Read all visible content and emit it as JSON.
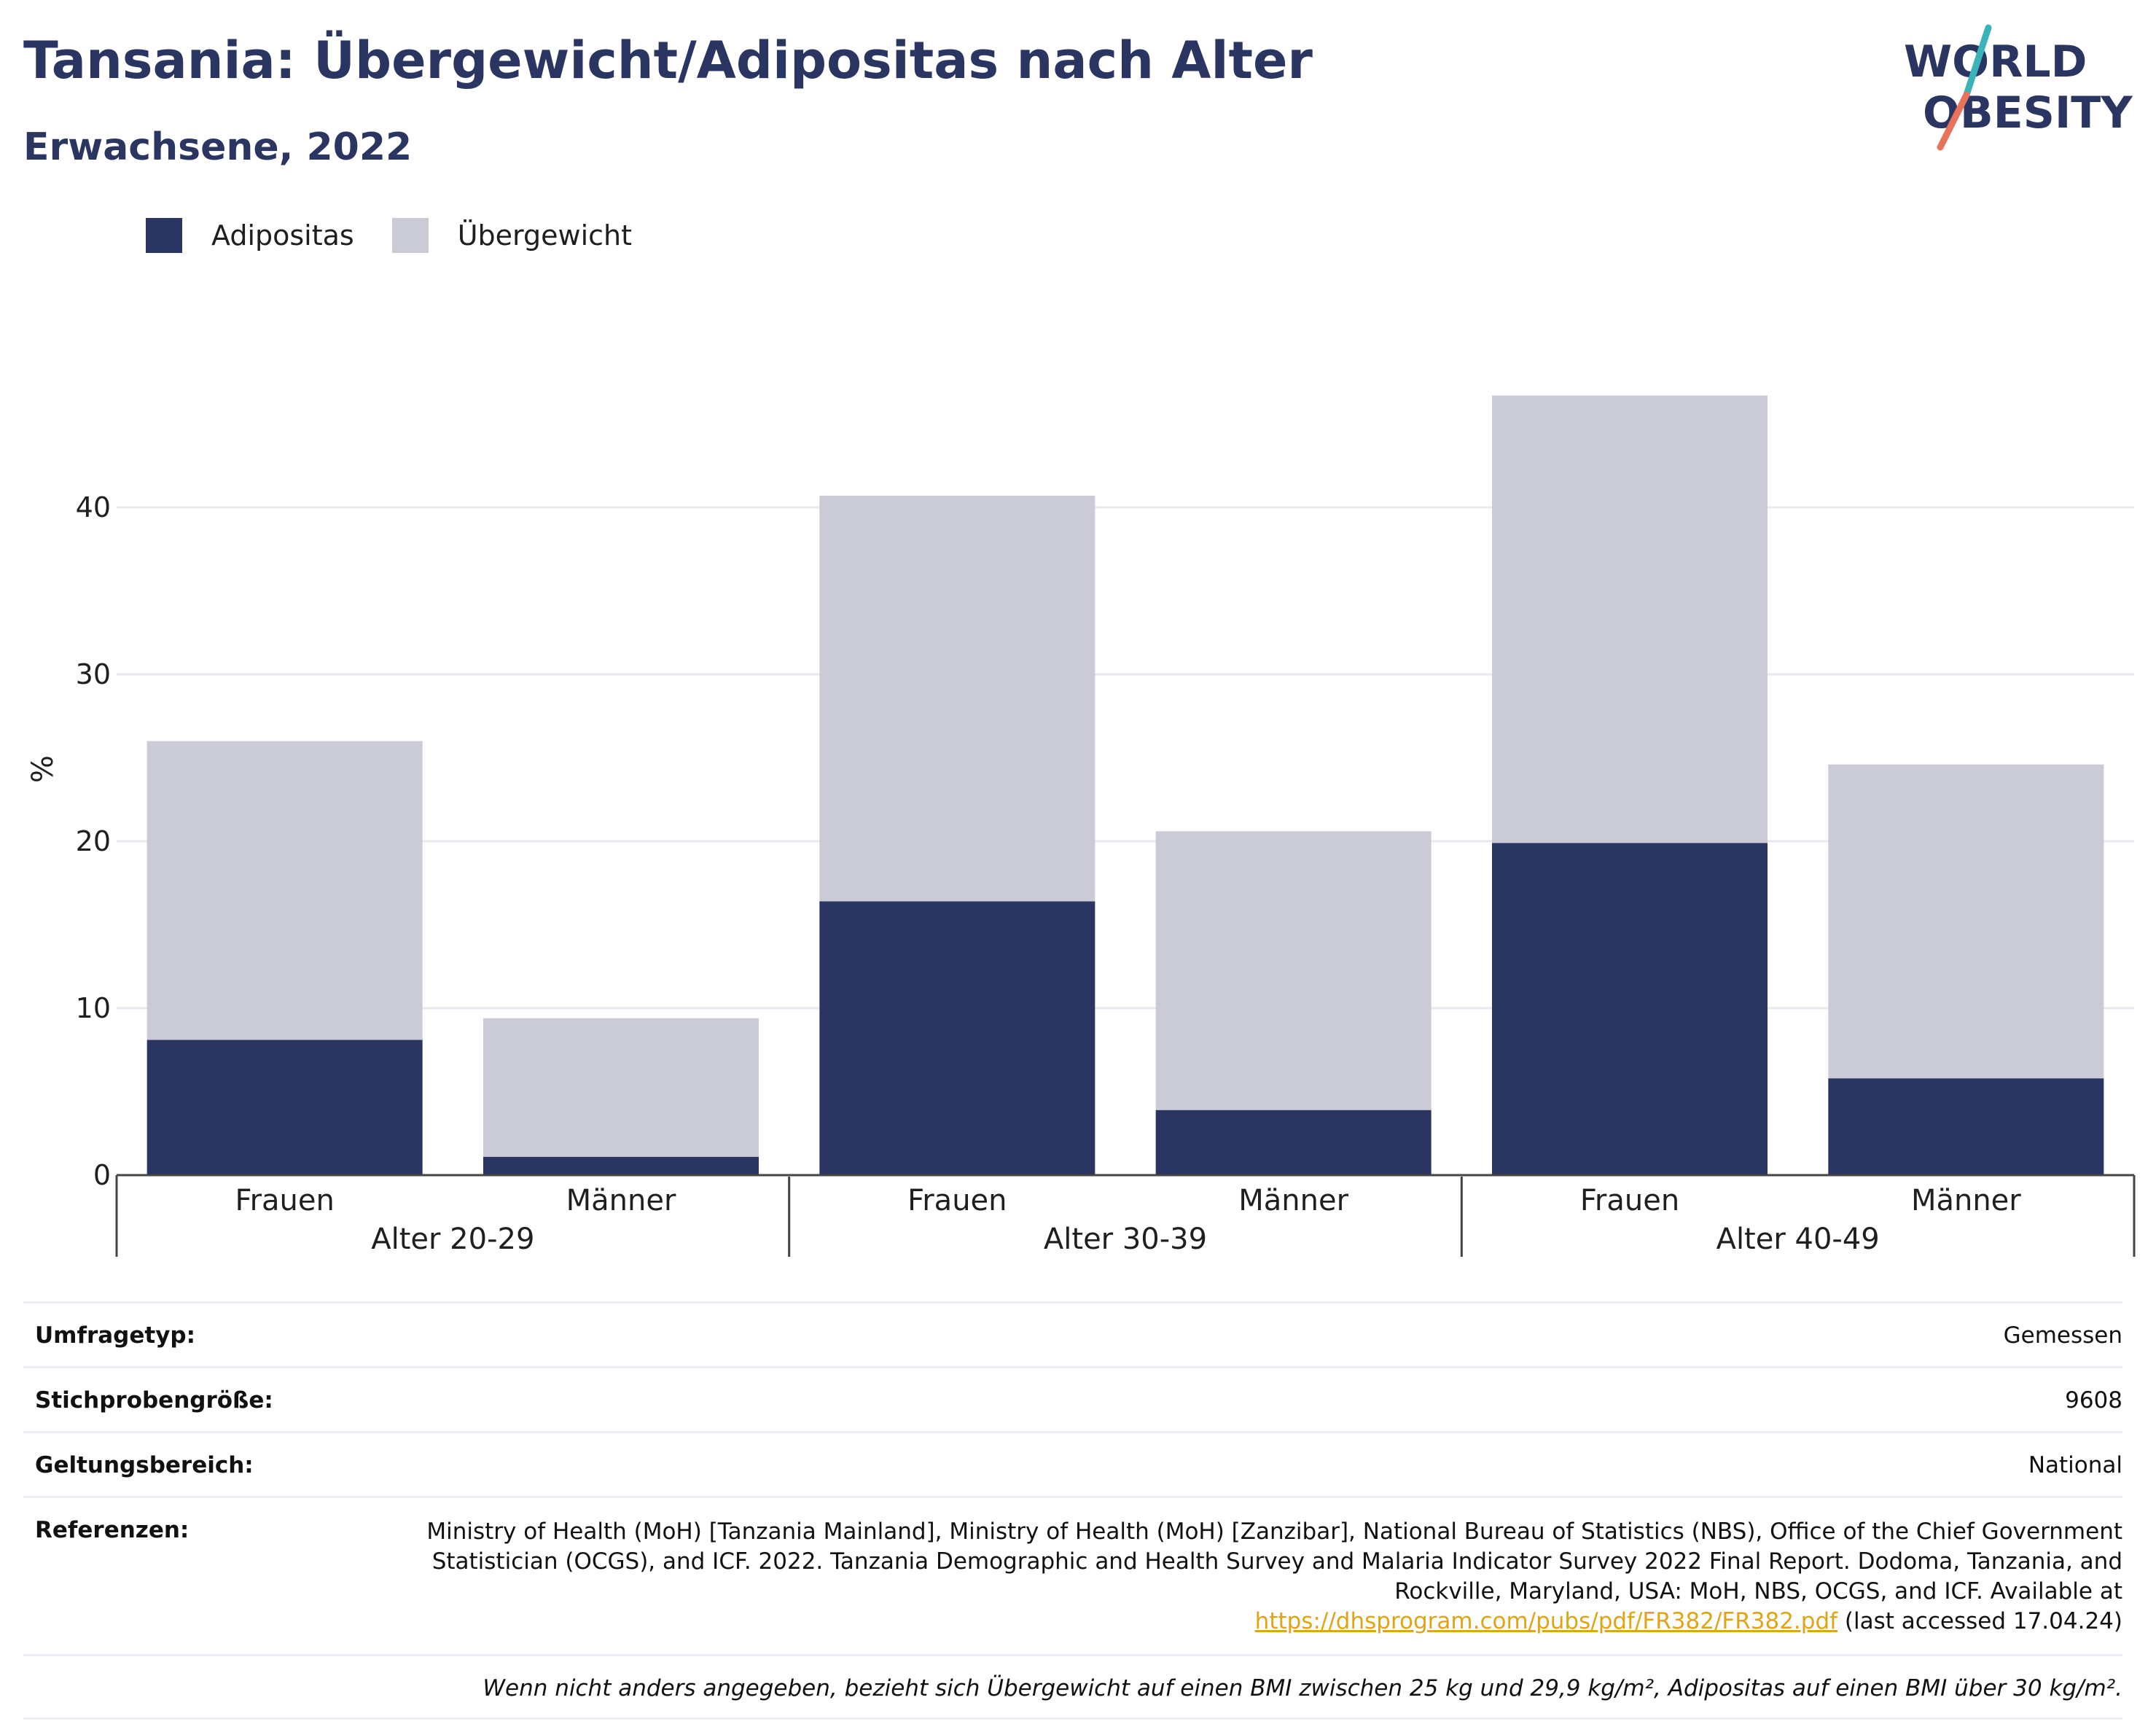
{
  "title": "Tansania: Übergewicht/Adipositas nach Alter",
  "subtitle": "Erwachsene, 2022",
  "logo": {
    "line1": "WORLD",
    "line2": "OBESITY",
    "colors": {
      "text": "#2a3561",
      "slash_teal": "#3ab4b8",
      "slash_coral": "#e8725a"
    }
  },
  "colors": {
    "adipositas": "#2a3561",
    "uebergewicht": "#cacbd7",
    "grid": "#e9eaef",
    "axis": "#444444"
  },
  "chart_data": {
    "type": "bar",
    "stacked": true,
    "ylabel": "%",
    "ylim": [
      0,
      50
    ],
    "yticks": [
      0,
      10,
      20,
      30,
      40
    ],
    "grid": true,
    "legend_position": "top-left",
    "groups": [
      "Alter 20-29",
      "Alter 30-39",
      "Alter 40-49"
    ],
    "categories": [
      "Frauen",
      "Männer",
      "Frauen",
      "Männer",
      "Frauen",
      "Männer"
    ],
    "series": [
      {
        "name": "Adipositas",
        "values": [
          8.1,
          1.1,
          16.4,
          3.9,
          19.9,
          5.8
        ]
      },
      {
        "name": "Übergewicht",
        "values": [
          17.9,
          8.3,
          24.3,
          16.7,
          26.8,
          18.8
        ]
      }
    ]
  },
  "meta": {
    "survey_type": {
      "label": "Umfragetyp:",
      "value": "Gemessen"
    },
    "sample_size": {
      "label": "Stichprobengröße:",
      "value": "9608"
    },
    "scope": {
      "label": "Geltungsbereich:",
      "value": "National"
    },
    "references": {
      "label": "Referenzen:",
      "text": "Ministry of Health (MoH) [Tanzania Mainland], Ministry of Health (MoH) [Zanzibar], National Bureau of Statistics (NBS), Office of the Chief Government Statistician (OCGS), and ICF. 2022. Tanzania Demographic and Health Survey and Malaria Indicator Survey 2022 Final Report. Dodoma, Tanzania, and Rockville, Maryland, USA: MoH, NBS, OCGS, and ICF. Available at",
      "link": "https://dhsprogram.com/pubs/pdf/FR382/FR382.pdf",
      "suffix": "(last accessed 17.04.24)"
    },
    "note": "Wenn nicht anders angegeben, bezieht sich Übergewicht auf einen BMI zwischen 25 kg und 29,9 kg/m², Adipositas auf einen BMI über 30 kg/m²."
  }
}
